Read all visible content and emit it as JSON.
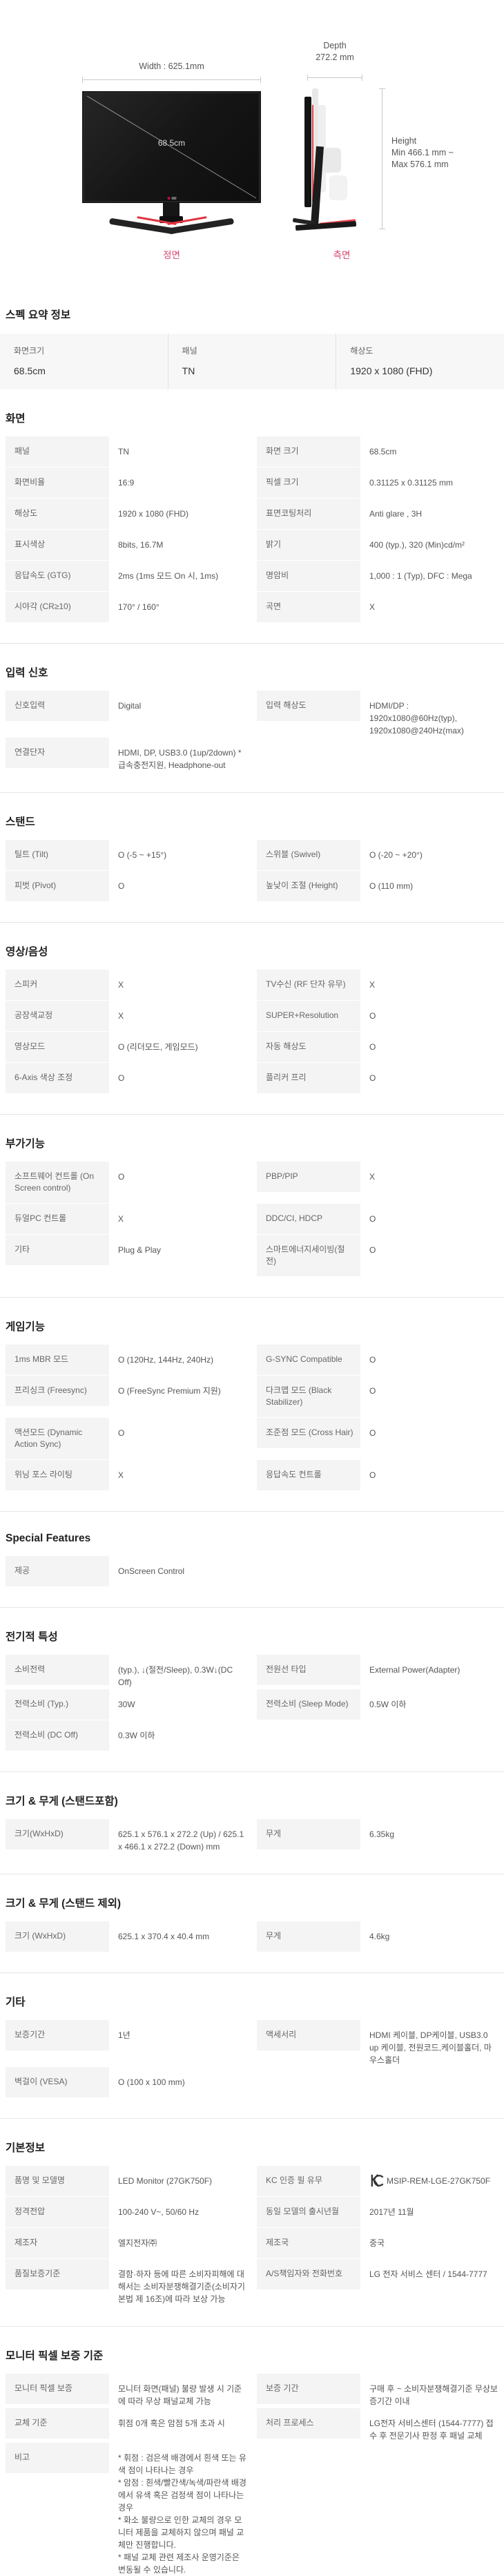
{
  "colors": {
    "caption_accent": "#d6456c",
    "monitor_red_accent": "#e8404a",
    "label_cell_bg": "#f4f4f4"
  },
  "figures": {
    "front": {
      "width_label": "Width : 625.1mm",
      "diagonal_label": "68.5cm",
      "caption": "정면"
    },
    "side": {
      "depth_label_line1": "Depth",
      "depth_label_line2": "272.2 mm",
      "height_label_line1": "Height",
      "height_label_line2": "Min 466.1 mm ~",
      "height_label_line3": "Max 576.1 mm",
      "caption": "측면"
    }
  },
  "summary": {
    "title": "스펙 요약 정보",
    "items": [
      {
        "label": "화면크기",
        "value": "68.5cm"
      },
      {
        "label": "패널",
        "value": "TN"
      },
      {
        "label": "해상도",
        "value": "1920 x 1080 (FHD)"
      }
    ]
  },
  "sections": [
    {
      "key": "screen",
      "title": "화면",
      "rows": [
        {
          "label": "패널",
          "value": "TN"
        },
        {
          "label": "화면 크기",
          "value": "68.5cm"
        },
        {
          "label": "화면비율",
          "value": "16:9"
        },
        {
          "label": "픽셀 크기",
          "value": "0.31125 x 0.31125 mm"
        },
        {
          "label": "해상도",
          "value": "1920 x 1080 (FHD)"
        },
        {
          "label": "표면코팅처리",
          "value": "Anti glare , 3H"
        },
        {
          "label": "표시색상",
          "value": "8bits, 16.7M"
        },
        {
          "label": "밝기",
          "value": "400 (typ.), 320 (Min)cd/m²"
        },
        {
          "label": "응답속도 (GTG)",
          "value": "2ms (1ms 모드 On 시, 1ms)"
        },
        {
          "label": "명암비",
          "value": "1,000 : 1 (Typ), DFC : Mega"
        },
        {
          "label": "시야각 (CR≥10)",
          "value": "170° / 160°"
        },
        {
          "label": "곡면",
          "value": "X"
        }
      ]
    },
    {
      "key": "input-signal",
      "title": "입력 신호",
      "rows": [
        {
          "label": "신호입력",
          "value": "Digital"
        },
        {
          "label": "입력 해상도",
          "value": "HDMI/DP : 1920x1080@60Hz(typ), 1920x1080@240Hz(max)"
        },
        {
          "label": "연결단자",
          "value": "HDMI, DP, USB3.0 (1up/2down) *급속충전지원, Headphone-out"
        }
      ]
    },
    {
      "key": "stand",
      "title": "스탠드",
      "rows": [
        {
          "label": "틸트 (Tilt)",
          "value": "O (-5 ~ +15°)"
        },
        {
          "label": "스위블 (Swivel)",
          "value": "O  (-20 ~ +20°)"
        },
        {
          "label": "피벗 (Pivot)",
          "value": "O"
        },
        {
          "label": "높낮이 조절 (Height)",
          "value": "O  (110 mm)"
        }
      ]
    },
    {
      "key": "video-audio",
      "title": "영상/음성",
      "rows": [
        {
          "label": "스피커",
          "value": "X"
        },
        {
          "label": "TV수신 (RF 단자 유무)",
          "value": "X"
        },
        {
          "label": "공장색교정",
          "value": "X"
        },
        {
          "label": "SUPER+Resolution",
          "value": "O"
        },
        {
          "label": "영상모드",
          "value": "O  (리더모드, 게임모드)"
        },
        {
          "label": "자동 해상도",
          "value": "O"
        },
        {
          "label": "6-Axis 색상 조정",
          "value": "O"
        },
        {
          "label": "플리커 프리",
          "value": "O"
        }
      ]
    },
    {
      "key": "extra-features",
      "title": "부가기능",
      "rows": [
        {
          "label": "소프트웨어 컨트롤 (On Screen control)",
          "value": "O"
        },
        {
          "label": "PBP/PIP",
          "value": "X"
        },
        {
          "label": "듀얼PC 컨트롤",
          "value": "X"
        },
        {
          "label": "DDC/CI, HDCP",
          "value": "O"
        },
        {
          "label": "기타",
          "value": "Plug & Play"
        },
        {
          "label": "스마트에너지세이빙(절전)",
          "value": "O"
        }
      ]
    },
    {
      "key": "game-features",
      "title": "게임기능",
      "rows": [
        {
          "label": "1ms MBR 모드",
          "value": "O  (120Hz, 144Hz, 240Hz)"
        },
        {
          "label": "G-SYNC Compatible",
          "value": "O"
        },
        {
          "label": "프리싱크 (Freesync)",
          "value": "O   (FreeSync Premium 지원)"
        },
        {
          "label": "다크맵 모드 (Black Stabilizer)",
          "value": "O"
        },
        {
          "label": "액션모드 (Dynamic Action Sync)",
          "value": "O"
        },
        {
          "label": "조준점 모드 (Cross Hair)",
          "value": "O"
        },
        {
          "label": "위닝 포스 라이팅",
          "value": "X"
        },
        {
          "label": "응답속도 컨트롤",
          "value": "O"
        }
      ]
    },
    {
      "key": "special-features",
      "title": "Special Features",
      "rows": [
        {
          "label": "제공",
          "value": "OnScreen Control"
        }
      ]
    },
    {
      "key": "electrical",
      "title": "전기적 특성",
      "rows": [
        {
          "label": "소비전력",
          "value": "(typ.), ↓(절전/Sleep), 0.3W↓(DC Off)"
        },
        {
          "label": "전원선 타입",
          "value": "External Power(Adapter)"
        },
        {
          "label": "전력소비 (Typ.)",
          "value": "30W"
        },
        {
          "label": "전력소비 (Sleep Mode)",
          "value": "0.5W 이하"
        },
        {
          "label": "전력소비 (DC Off)",
          "value": "0.3W 이하"
        }
      ]
    },
    {
      "key": "size-weight-with-stand",
      "title": "크기 & 무게 (스탠드포함)",
      "rows": [
        {
          "label": "크기(WxHxD)",
          "value": "625.1 x 576.1 x 272.2 (Up) / 625.1 x 466.1 x 272.2 (Down) mm"
        },
        {
          "label": "무게",
          "value": "6.35kg"
        }
      ]
    },
    {
      "key": "size-weight-without-stand",
      "title": "크기 & 무게 (스탠드 제외)",
      "rows": [
        {
          "label": "크기 (WxHxD)",
          "value": "625.1 x 370.4 x 40.4 mm"
        },
        {
          "label": "무게",
          "value": "4.6kg"
        }
      ]
    },
    {
      "key": "etc",
      "title": "기타",
      "rows": [
        {
          "label": "보증기간",
          "value": "1년"
        },
        {
          "label": "액세서리",
          "value": "HDMI 케이블, DP케이블, USB3.0 up 케이블, 전원코드,케이블홀더, 마우스홀더"
        },
        {
          "label": "벽걸이 (VESA)",
          "value": "O (100 x 100 mm)"
        }
      ]
    },
    {
      "key": "basic-info",
      "title": "기본정보",
      "rows": [
        {
          "label": "품명 및 모델명",
          "value": "LED Monitor (27GK750F)"
        },
        {
          "label": "KC 인증 필 유무",
          "value": "MSIP-REM-LGE-27GK750F",
          "icon": "kc-certification"
        },
        {
          "label": "정격전압",
          "value": "100-240 V~, 50/60 Hz"
        },
        {
          "label": "동일 모델의 출시년월",
          "value": "2017년 11월"
        },
        {
          "label": "제조자",
          "value": "엘지전자㈜"
        },
        {
          "label": "제조국",
          "value": "중국"
        },
        {
          "label": "품질보증기준",
          "value": "결함·하자 등에 따른 소비자피해에 대해서는 소비자분쟁해결기준(소비자기본법 제 16조)에 따라 보상 가능"
        },
        {
          "label": "A/S책임자와 전화번호",
          "value": "LG 전자 서비스 센터 / 1544-7777"
        }
      ]
    },
    {
      "key": "pixel-warranty",
      "title": "모니터 픽셀 보증 기준",
      "rows": [
        {
          "label": "모니터 픽셀 보증",
          "value": "모니터 화면(패널) 불량 발생 시 기준에 따라 무상 패널교체 가능"
        },
        {
          "label": "보증 기간",
          "value": "구매 후 ~ 소비자분쟁해결기준 무상보증기간 이내"
        },
        {
          "label": "교체 기준",
          "value": "휘점 0개 혹은 암점 5개 초과 시"
        },
        {
          "label": "처리 프로세스",
          "value": "LG전자 서비스센터 (1544-7777) 접수 후 전문기사 판정 후 패널 교체"
        },
        {
          "label": "비고",
          "value": "* 휘점 : 검은색 배경에서 흰색 또는 유색 점이 나타나는 경우\n* 암점 : 흰색/빨간색/녹색/파란색 배경에서 유색 혹은 검정색 점이 나타나는 경우\n* 화소 불량으로 인한 교체의 경우 모니터 제품을 교체하지 않으며 패널 교체만 진행합니다.\n* 패널 교체 관련 제조사 운영기준은 변동될 수 있습니다."
        }
      ]
    }
  ]
}
